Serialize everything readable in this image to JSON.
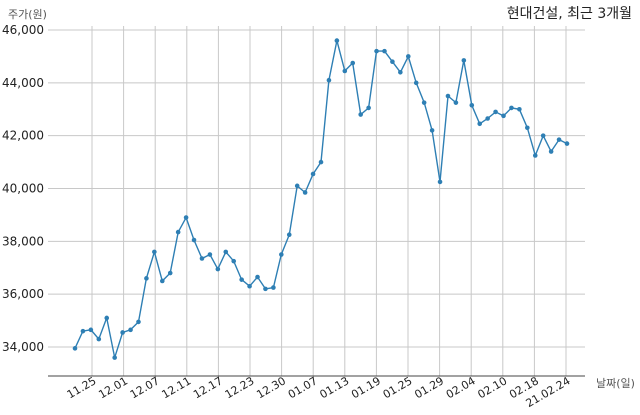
{
  "chart_data": {
    "type": "line",
    "title": "현대건설, 최근 3개월",
    "ylabel": "주가(원)",
    "xlabel": "날짜(일)",
    "ylim": [
      33000,
      46000
    ],
    "yticks": [
      34000,
      36000,
      38000,
      40000,
      42000,
      44000,
      46000
    ],
    "ytick_labels": [
      "34,000",
      "36,000",
      "38,000",
      "40,000",
      "42,000",
      "44,000",
      "46,000"
    ],
    "xtick_labels": [
      "11.25",
      "12.01",
      "12.07",
      "12.11",
      "12.17",
      "12.23",
      "12.30",
      "01.07",
      "01.13",
      "01.19",
      "01.25",
      "01.29",
      "02.04",
      "02.10",
      "02.18",
      "21.02.24"
    ],
    "grid": true,
    "color": "#2e7fb4",
    "series": [
      {
        "values": [
          33950,
          34600,
          34650,
          34300,
          35100,
          33600,
          34550,
          34650,
          34950,
          36600,
          37600,
          36500,
          36800,
          38350,
          38900,
          38050,
          37350,
          37500,
          36950,
          37600,
          37250,
          36550,
          36300,
          36650,
          36200,
          36250,
          37500,
          38250,
          40100,
          39850,
          40550,
          41000,
          44100,
          45600,
          44450,
          44750,
          42800,
          43050,
          45200,
          45200,
          44800,
          44400,
          45000,
          44000,
          43250,
          42200,
          40250,
          43500,
          43250,
          44850,
          43150,
          42450,
          42650,
          42900,
          42750,
          43050,
          43000,
          42300,
          41250,
          42000,
          41400,
          41850,
          41700
        ]
      }
    ]
  }
}
